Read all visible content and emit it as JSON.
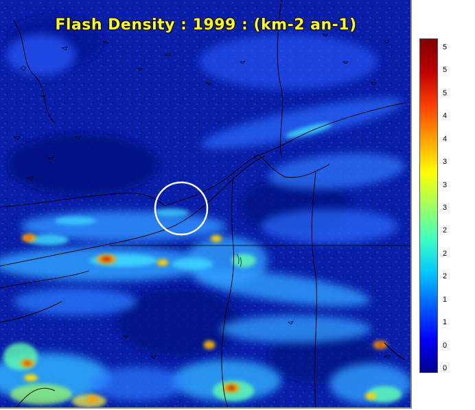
{
  "title": "Flash Density : 1999 : (km-2 an-1)",
  "colorbar": {
    "labels": [
      "5",
      "5",
      "5",
      "4",
      "4",
      "3",
      "3",
      "3",
      "2",
      "2",
      "2",
      "1",
      "1",
      "0",
      "0"
    ],
    "gradient": [
      "#00008b",
      "#0000ff",
      "#0060ff",
      "#00c8ff",
      "#40ffc0",
      "#a0ff60",
      "#ffff00",
      "#ffa000",
      "#ff4000",
      "#c00000",
      "#800000"
    ]
  },
  "map_colors": {
    "background": "#0a1fa8",
    "coastline": "#000000",
    "highlight_circle": "#ffffff"
  }
}
